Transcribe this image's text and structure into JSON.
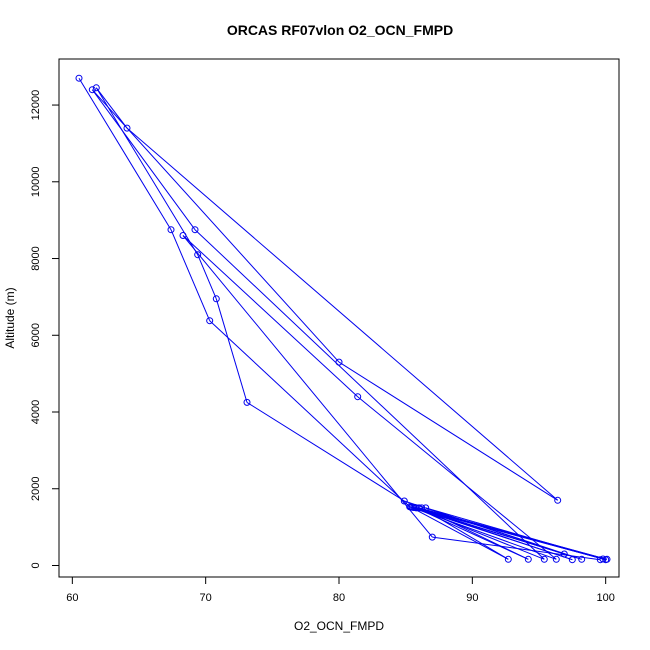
{
  "chart_data": {
    "type": "line",
    "title": "ORCAS RF07vlon O2_OCN_FMPD",
    "xlabel": "O2_OCN_FMPD",
    "ylabel": "Altitude (m)",
    "xlim": [
      59.0,
      101.0
    ],
    "ylim": [
      -300,
      13200
    ],
    "xticks": [
      60,
      70,
      80,
      90,
      100
    ],
    "yticks": [
      0,
      2000,
      4000,
      6000,
      8000,
      10000,
      12000
    ],
    "color": "#0000ee",
    "series": [
      {
        "name": "O2_OCN_FMPD",
        "points": [
          [
            60.5,
            12700
          ],
          [
            67.4,
            8750
          ],
          [
            70.3,
            6380
          ],
          [
            85.3,
            1530
          ],
          [
            100.0,
            150
          ],
          [
            85.6,
            1510
          ],
          [
            100.1,
            160
          ],
          [
            86.0,
            1500
          ],
          [
            99.8,
            170
          ],
          [
            86.5,
            1500
          ],
          [
            98.2,
            160
          ],
          [
            85.5,
            1520
          ],
          [
            97.5,
            150
          ],
          [
            85.8,
            1500
          ],
          [
            96.9,
            300
          ],
          [
            84.9,
            1680
          ],
          [
            73.1,
            4250
          ],
          [
            70.8,
            6950
          ],
          [
            69.4,
            8100
          ],
          [
            61.8,
            12450
          ],
          [
            64.1,
            11400
          ],
          [
            96.4,
            1700
          ],
          [
            80.0,
            5300
          ],
          [
            61.5,
            12400
          ],
          [
            69.2,
            8750
          ],
          [
            95.4,
            160
          ],
          [
            85.7,
            1510
          ],
          [
            94.2,
            160
          ],
          [
            86.2,
            1500
          ],
          [
            92.7,
            160
          ],
          [
            85.4,
            1520
          ],
          [
            96.3,
            160
          ],
          [
            81.4,
            4400
          ],
          [
            68.3,
            8600
          ],
          [
            87.0,
            740
          ],
          [
            99.6,
            150
          ]
        ]
      }
    ]
  }
}
